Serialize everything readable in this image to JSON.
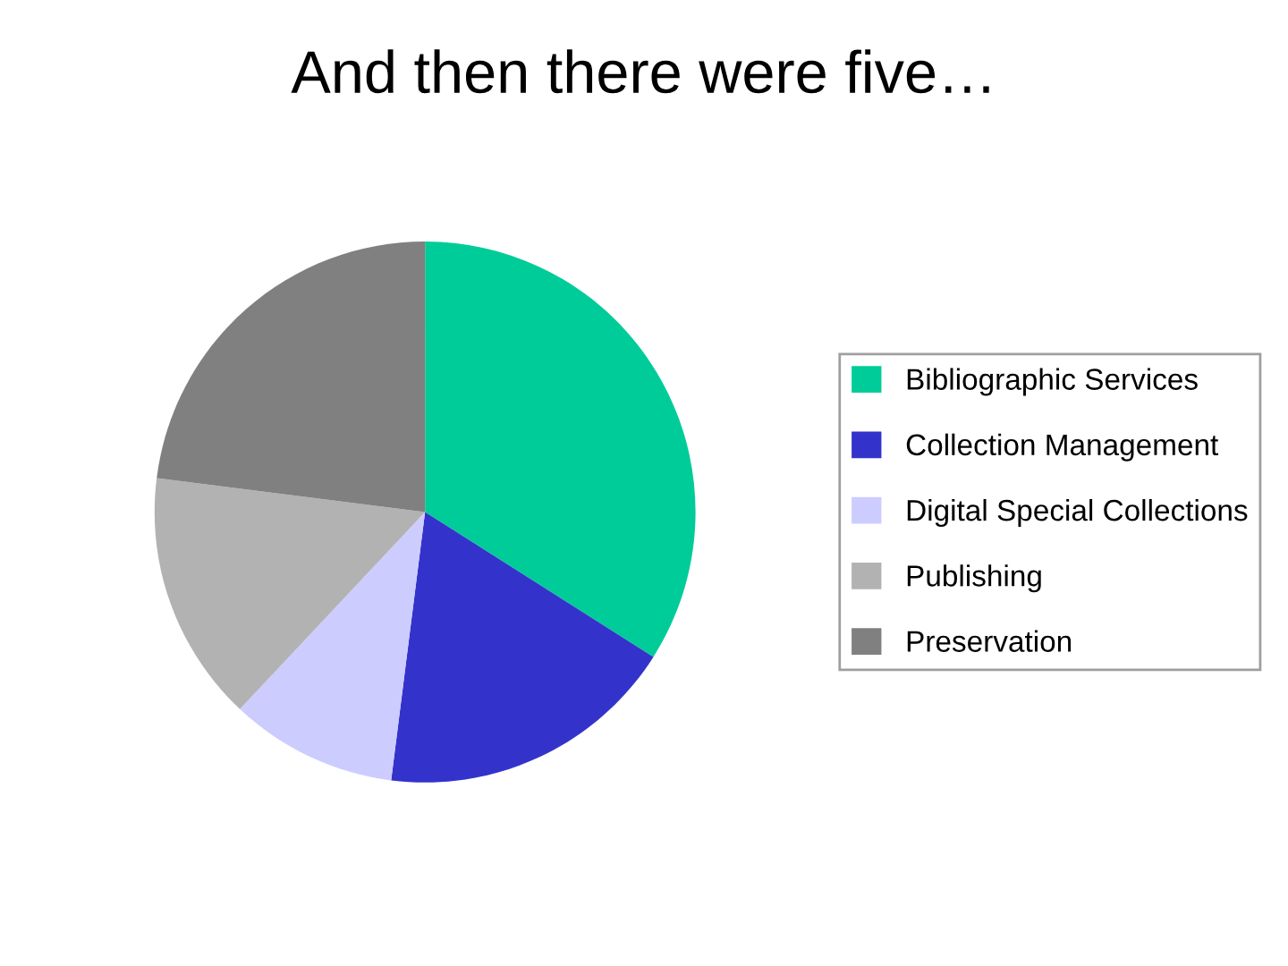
{
  "chart_data": {
    "type": "pie",
    "title": "And then there were five…",
    "categories": [
      "Bibliographic Services",
      "Collection Management",
      "Digital Special Collections",
      "Publishing",
      "Preservation"
    ],
    "values": [
      34,
      18,
      10,
      15,
      23
    ],
    "colors": [
      "#00cc99",
      "#3333cc",
      "#ccccff",
      "#b2b2b2",
      "#808080"
    ],
    "legend": "right"
  }
}
